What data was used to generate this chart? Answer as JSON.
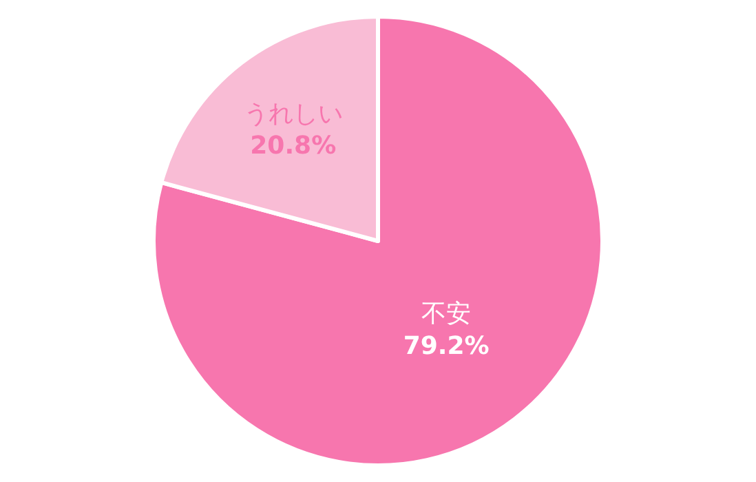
{
  "chart_data": {
    "type": "pie",
    "categories": [
      "不安",
      "うれしい"
    ],
    "values": [
      79.2,
      20.8
    ],
    "value_labels": [
      "79.2%",
      "20.8%"
    ],
    "colors": [
      "#f776ae",
      "#f9bcd5"
    ],
    "legend": false
  }
}
